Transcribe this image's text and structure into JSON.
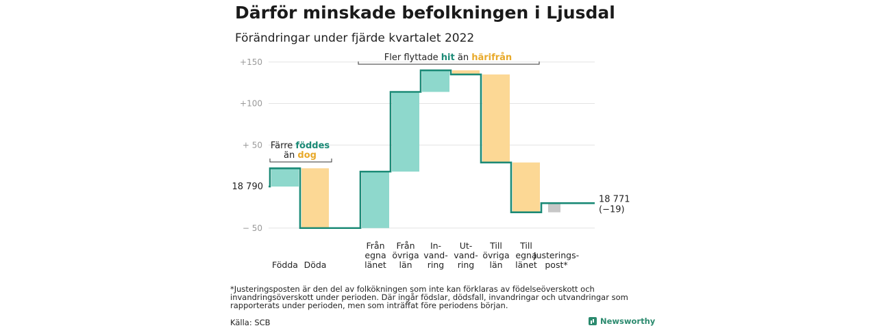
{
  "title": "Därför minskade befolkningen i Ljusdal",
  "subtitle": "Förändringar under fjärde kvartalet 2022",
  "footnote": "*Justeringsposten är den del av folkökningen som inte kan förklaras av födelseöverskott och invandringsöverskott under perioden. Där ingår födslar, dödsfall, invandringar och utvandringar som rapporterats under perioden, men som inträffat före periodens början.",
  "source": "Källa: SCB",
  "brand": "Newsworthy",
  "colors": {
    "increase": "#8ed8cc",
    "decrease": "#fcd895",
    "adjustment": "#c7c7c7",
    "line": "#1b8a76",
    "teal_text": "#1b8a76",
    "gold_text": "#e8a92a",
    "grid": "#e3e3e3",
    "tick": "#999999"
  },
  "chart_data": {
    "type": "waterfall",
    "start_value": 18790,
    "start_label": "18 790",
    "end_value": 18771,
    "end_label": "18 771",
    "end_change_label": "(−19)",
    "y_ticks": [
      {
        "value": 150,
        "label": "+150"
      },
      {
        "value": 100,
        "label": "+100"
      },
      {
        "value": 50,
        "label": "+ 50"
      },
      {
        "value": 0,
        "label": ""
      },
      {
        "value": -50,
        "label": "− 50"
      }
    ],
    "ylim": [
      -50,
      150
    ],
    "steps": [
      {
        "label": [
          "Födda"
        ],
        "change": 22,
        "kind": "increase"
      },
      {
        "label": [
          "Döda"
        ],
        "change": -72,
        "kind": "decrease"
      },
      {
        "label": [],
        "change": 0,
        "kind": "gap"
      },
      {
        "label": [
          "Från",
          "egna",
          "länet"
        ],
        "change": 68,
        "kind": "increase"
      },
      {
        "label": [
          "Från",
          "övriga",
          "län"
        ],
        "change": 96,
        "kind": "increase"
      },
      {
        "label": [
          "In-",
          "vand-",
          "ring"
        ],
        "change": 26,
        "kind": "increase"
      },
      {
        "label": [
          "Ut-",
          "vand-",
          "ring"
        ],
        "change": -5,
        "kind": "decrease"
      },
      {
        "label": [
          "Till",
          "övriga",
          "län"
        ],
        "change": -106,
        "kind": "decrease"
      },
      {
        "label": [
          "Till",
          "egna",
          "länet"
        ],
        "change": -60,
        "kind": "decrease"
      },
      {
        "label": [
          "Justerings-",
          "post*"
        ],
        "change": 11,
        "kind": "adjustment"
      }
    ],
    "annotations": {
      "births": {
        "line1": "Färre ",
        "line1_highlight": "föddes",
        "line2": "än ",
        "line2_highlight": "dog"
      },
      "migration": {
        "text": "Fler flyttade ",
        "highlight1": "hit",
        "mid": " än ",
        "highlight2": "härifrån"
      }
    }
  }
}
